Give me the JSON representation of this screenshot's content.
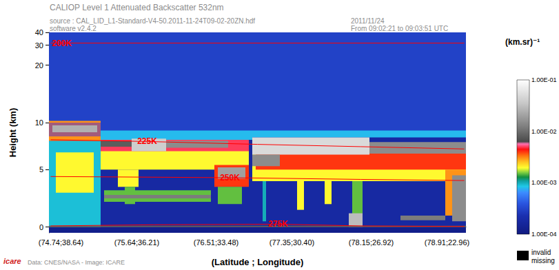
{
  "chart_data": {
    "type": "heatmap",
    "title": "CALIOP Level 1 Attenuated Backscatter 532nm",
    "subtitle": [
      "source : CAL_LID_L1-Standard-V4-50.2011-11-24T09-02-20ZN.hdf",
      "software v2.4.2"
    ],
    "date": [
      "2011/11/24",
      "From 09:02:21 to 09:03:51 UTC"
    ],
    "credit": "Data: CNES/NASA - Image: ICARE",
    "logo": "icare",
    "xlabel": "(Latitude ; Longitude)",
    "ylabel": "Height (km)",
    "categories": [
      null,
      null,
      null,
      "(74.74;38.64)",
      null,
      null,
      null,
      null,
      null,
      null,
      null,
      null,
      null,
      null,
      null,
      null,
      null,
      null,
      null,
      null,
      null,
      null,
      null,
      null,
      null,
      "(75.64;36.21)",
      null,
      null,
      null,
      null,
      null,
      null,
      null,
      null,
      null,
      null,
      null,
      null,
      null,
      null,
      null,
      null,
      null,
      null,
      null,
      null,
      null,
      null,
      "(76.51;33.48)",
      null,
      null,
      null,
      null,
      null,
      null,
      null,
      null,
      null,
      null,
      null,
      null,
      null,
      null,
      null,
      null,
      null,
      null,
      null,
      null,
      null,
      "(77.35;30.40)",
      null,
      null,
      null,
      null,
      null,
      null,
      null,
      null,
      null,
      null,
      null,
      null,
      null,
      null,
      null,
      null,
      null,
      null,
      null,
      null,
      null,
      null,
      "(78.15;26.92)",
      null,
      null,
      null,
      null,
      null,
      null,
      null,
      null,
      null,
      null,
      null,
      null,
      null,
      null,
      null,
      null,
      null,
      null,
      null,
      null,
      null,
      "(78.91;22.96)",
      null,
      null,
      null,
      null,
      null
    ],
    "ylim": [
      -0.5,
      40
    ],
    "yticks": [
      0,
      5,
      10,
      20,
      30,
      40
    ],
    "cells": [
      {
        "x": [
          0,
          120
        ],
        "y": [
          -0.5,
          40
        ],
        "value": 0.0003
      },
      {
        "x": [
          0,
          120
        ],
        "y": [
          -0.5,
          0
        ],
        "value": 0.00012
      },
      {
        "x": [
          15,
          120
        ],
        "y": [
          0,
          8
        ],
        "value": 0.00018
      },
      {
        "x": [
          0,
          14
        ],
        "y": [
          0,
          7.5
        ],
        "value": 0.0009
      },
      {
        "x": [
          2,
          12
        ],
        "y": [
          3,
          6.5
        ],
        "value": 0.002
      },
      {
        "x": [
          0,
          14
        ],
        "y": [
          7.5,
          10.3
        ],
        "value": 0.003
      },
      {
        "x": [
          0,
          14
        ],
        "y": [
          7.9,
          10.0
        ],
        "value": 0.006
      },
      {
        "x": [
          1,
          13
        ],
        "y": [
          8.3,
          9.5
        ],
        "value": 0.025
      },
      {
        "x": [
          15,
          58
        ],
        "y": [
          7.6,
          8.6
        ],
        "value": 0.0008
      },
      {
        "x": [
          15,
          57
        ],
        "y": [
          5.0,
          7.6
        ],
        "value": 0.002
      },
      {
        "x": [
          15,
          57
        ],
        "y": [
          6.6,
          7.6
        ],
        "value": 0.005
      },
      {
        "x": [
          15,
          23
        ],
        "y": [
          7.0,
          7.5
        ],
        "value": 0.008
      },
      {
        "x": [
          24,
          33
        ],
        "y": [
          6.6,
          7.7
        ],
        "value": 0.04
      },
      {
        "x": [
          34,
          51
        ],
        "y": [
          6.9,
          7.5
        ],
        "value": 0.015
      },
      {
        "x": [
          20,
          25
        ],
        "y": [
          3.5,
          5.0
        ],
        "value": 0.002
      },
      {
        "x": [
          22,
          24
        ],
        "y": [
          2.0,
          3.5
        ],
        "value": 0.0015
      },
      {
        "x": [
          16,
          46
        ],
        "y": [
          2.2,
          3.2
        ],
        "value": 0.0015
      },
      {
        "x": [
          16,
          46
        ],
        "y": [
          2.5,
          2.8
        ],
        "value": 0.012
      },
      {
        "x": [
          48,
          57
        ],
        "y": [
          3.5,
          5.4
        ],
        "value": 0.004
      },
      {
        "x": [
          49,
          56
        ],
        "y": [
          4.2,
          5.2
        ],
        "value": 0.02
      },
      {
        "x": [
          49,
          55
        ],
        "y": [
          2.0,
          3.5
        ],
        "value": 0.0015
      },
      {
        "x": [
          59,
          120
        ],
        "y": [
          7.8,
          8.6
        ],
        "value": 0.0008
      },
      {
        "x": [
          59,
          120
        ],
        "y": [
          4.0,
          6.4
        ],
        "value": 0.002
      },
      {
        "x": [
          60,
          120
        ],
        "y": [
          5.0,
          6.4
        ],
        "value": 0.004
      },
      {
        "x": [
          59,
          92
        ],
        "y": [
          6.3,
          7.8
        ],
        "value": 0.05
      },
      {
        "x": [
          93,
          120
        ],
        "y": [
          6.4,
          7.4
        ],
        "value": 0.015
      },
      {
        "x": [
          59,
          66
        ],
        "y": [
          5.3,
          6.3
        ],
        "value": 0.015
      },
      {
        "x": [
          62,
          62
        ],
        "y": [
          0.5,
          4.0
        ],
        "value": 0.001
      },
      {
        "x": [
          72,
          73
        ],
        "y": [
          1.5,
          4.0
        ],
        "value": 0.002
      },
      {
        "x": [
          80,
          81
        ],
        "y": [
          2.0,
          4.0
        ],
        "value": 0.002
      },
      {
        "x": [
          88,
          90
        ],
        "y": [
          0.2,
          4.0
        ],
        "value": 0.0015
      },
      {
        "x": [
          87,
          90
        ],
        "y": [
          0,
          1.2
        ],
        "value": 0.03
      },
      {
        "x": [
          102,
          114
        ],
        "y": [
          0.6,
          1.0
        ],
        "value": 0.012
      },
      {
        "x": [
          115,
          120
        ],
        "y": [
          1.0,
          5.0
        ],
        "value": 0.003
      },
      {
        "x": [
          117,
          120
        ],
        "y": [
          0.5,
          4.5
        ],
        "value": 0.015
      },
      {
        "x": [
          0,
          120
        ],
        "y": [
          0,
          0.12
        ],
        "value": 0.008
      }
    ],
    "isotherms": [
      {
        "name": "200K",
        "color": "#ff0000",
        "x": [
          0,
          120
        ],
        "values": [
          31.6,
          31.6
        ]
      },
      {
        "name": "225K",
        "color": "#ff0000",
        "x": [
          0,
          28,
          60,
          90,
          120
        ],
        "values": [
          7.6,
          7.45,
          7.2,
          7.0,
          6.8
        ]
      },
      {
        "name": "250K",
        "color": "#ff0000",
        "x": [
          0,
          52,
          90,
          120
        ],
        "values": [
          4.4,
          4.3,
          4.15,
          4.05
        ]
      },
      {
        "name": "275K",
        "color": "#ff0000",
        "x": [
          0,
          30,
          66,
          90,
          120
        ],
        "values": [
          0.1,
          0.2,
          0.25,
          0.1,
          0.05
        ]
      }
    ],
    "colorbar": {
      "title": "(km.sr)⁻¹",
      "log": true,
      "range": [
        0.0001,
        0.1
      ],
      "ticks": [
        {
          "value": 0.1,
          "label": "1.00E-01"
        },
        {
          "value": 0.01,
          "label": "1.00E-02"
        },
        {
          "value": 0.001,
          "label": "1.00E-03"
        },
        {
          "value": 0.0001,
          "label": "1.00E-04"
        }
      ]
    },
    "missing_label": [
      "invalid",
      "missing"
    ],
    "grid": false
  }
}
